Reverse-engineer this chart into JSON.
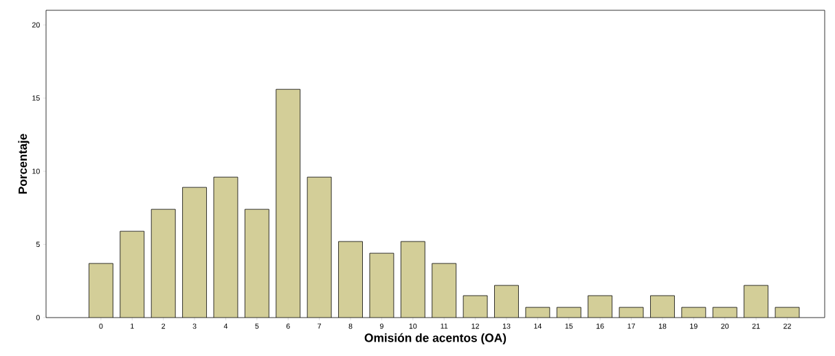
{
  "chart_data": {
    "type": "bar",
    "xlabel": "Omisión de acentos (OA)",
    "ylabel": "Porcentaje",
    "categories": [
      "0",
      "1",
      "2",
      "3",
      "4",
      "5",
      "6",
      "7",
      "8",
      "9",
      "10",
      "11",
      "12",
      "13",
      "14",
      "15",
      "16",
      "17",
      "18",
      "19",
      "20",
      "21",
      "22"
    ],
    "values": [
      3.7,
      5.9,
      7.4,
      8.9,
      9.6,
      7.4,
      15.6,
      9.6,
      5.2,
      4.4,
      5.2,
      3.7,
      1.5,
      2.2,
      0.7,
      0.7,
      1.5,
      0.7,
      1.5,
      0.7,
      0.7,
      2.2,
      0.7
    ],
    "color": "#d3ce98",
    "ylim": [
      0,
      21
    ],
    "yticks": [
      0,
      5,
      10,
      15,
      20
    ],
    "grid": false
  }
}
